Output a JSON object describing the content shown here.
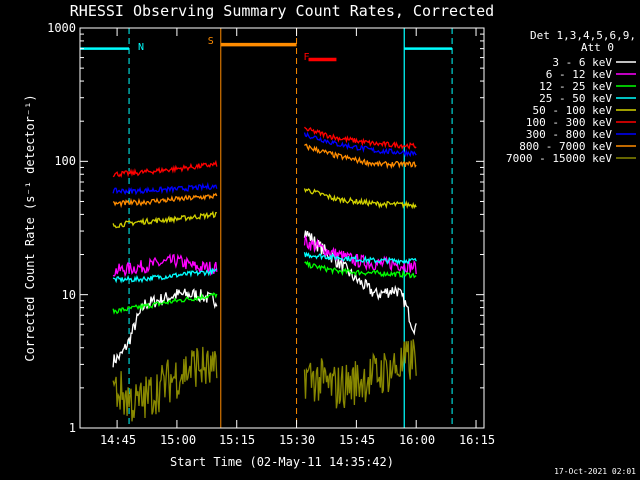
{
  "chart_data": {
    "type": "line",
    "title": "RHESSI Observing Summary Count Rates, Corrected",
    "xlabel": "Start Time (02-May-11 14:35:42)",
    "ylabel": "Corrected Count Rate (s⁻¹ detector⁻¹)",
    "y_scale": "log",
    "ylim": [
      1,
      1000
    ],
    "xlim": [
      "14:35:42",
      "16:17:00"
    ],
    "x_ticks": [
      "14:45",
      "15:00",
      "15:15",
      "15:30",
      "15:45",
      "16:00",
      "16:15"
    ],
    "y_ticks": [
      "1",
      "10",
      "100",
      "1000"
    ],
    "grid": false,
    "legend_position": "top-right",
    "legend_header": [
      "Det 1,3,4,5,6,9,",
      "Att 0"
    ],
    "timestamp": "17-Oct-2021 02:01",
    "flags": [
      {
        "label": "N",
        "color": "#00ffff",
        "line": "dashed",
        "time": "14:49"
      },
      {
        "label": "S",
        "color": "#ff8c00",
        "line": "solid",
        "time": "15:11"
      },
      {
        "label": "F",
        "color": "#ff0000",
        "line": "none",
        "time": "15:33"
      }
    ],
    "night_intervals": [
      {
        "start": "14:35:42",
        "end": "14:48",
        "level": 700
      },
      {
        "start": "15:57",
        "end": "16:09",
        "level": 700
      }
    ],
    "saa_interval": {
      "start": "15:11",
      "end": "15:30",
      "level": 750
    },
    "flare_marker": {
      "start": "15:33",
      "end": "15:40",
      "level": 580
    },
    "series": [
      {
        "name": "3 - 6 keV",
        "color": "#ffffff",
        "segments": [
          {
            "t": [
              "14:44",
              "14:46",
              "14:48",
              "14:50",
              "14:52",
              "14:55",
              "15:00",
              "15:05",
              "15:10"
            ],
            "y": [
              3.2,
              3.5,
              4.5,
              6.5,
              8.5,
              9,
              10,
              10,
              9
            ]
          },
          {
            "t": [
              "15:32",
              "15:35",
              "15:40",
              "15:45",
              "15:50",
              "15:55",
              "15:57",
              "15:59",
              "16:00"
            ],
            "y": [
              30,
              24,
              18,
              13,
              10,
              11,
              9,
              6,
              5.5
            ]
          }
        ]
      },
      {
        "name": "6 - 12 keV",
        "color": "#ff00ff",
        "segments": [
          {
            "t": [
              "14:44",
              "14:50",
              "14:55",
              "15:00",
              "15:05",
              "15:10"
            ],
            "y": [
              15,
              16,
              17,
              18,
              16,
              16
            ]
          },
          {
            "t": [
              "15:32",
              "15:35",
              "15:40",
              "15:45",
              "15:50",
              "15:55",
              "16:00"
            ],
            "y": [
              25,
              23,
              20,
              18,
              17,
              17,
              16
            ]
          }
        ]
      },
      {
        "name": "12 - 25 keV",
        "color": "#00ff00",
        "segments": [
          {
            "t": [
              "14:44",
              "14:50",
              "15:00",
              "15:10"
            ],
            "y": [
              7.5,
              8,
              9,
              10
            ]
          },
          {
            "t": [
              "15:32",
              "15:40",
              "15:50",
              "16:00"
            ],
            "y": [
              17,
              15,
              14.5,
              14
            ]
          }
        ]
      },
      {
        "name": "25 - 50 keV",
        "color": "#00ffff",
        "segments": [
          {
            "t": [
              "14:44",
              "14:50",
              "15:00",
              "15:10"
            ],
            "y": [
              13,
              13,
              14,
              15
            ]
          },
          {
            "t": [
              "15:32",
              "15:40",
              "15:50",
              "16:00"
            ],
            "y": [
              20,
              19,
              18,
              18
            ]
          }
        ]
      },
      {
        "name": "50 - 100 keV",
        "color": "#d2d200",
        "segments": [
          {
            "t": [
              "14:44",
              "14:50",
              "15:00",
              "15:10"
            ],
            "y": [
              33,
              35,
              37,
              40
            ]
          },
          {
            "t": [
              "15:32",
              "15:40",
              "15:50",
              "16:00"
            ],
            "y": [
              62,
              52,
              48,
              47
            ]
          }
        ]
      },
      {
        "name": "100 - 300 keV",
        "color": "#ff0000",
        "segments": [
          {
            "t": [
              "14:44",
              "14:50",
              "15:00",
              "15:10"
            ],
            "y": [
              80,
              82,
              88,
              95
            ]
          },
          {
            "t": [
              "15:32",
              "15:40",
              "15:50",
              "16:00"
            ],
            "y": [
              175,
              150,
              135,
              130
            ]
          }
        ]
      },
      {
        "name": "300 - 800 keV",
        "color": "#0000ff",
        "segments": [
          {
            "t": [
              "14:44",
              "14:50",
              "15:00",
              "15:10"
            ],
            "y": [
              60,
              60,
              62,
              65
            ]
          },
          {
            "t": [
              "15:32",
              "15:40",
              "15:50",
              "16:00"
            ],
            "y": [
              160,
              135,
              120,
              115
            ]
          }
        ]
      },
      {
        "name": "800 - 7000 keV",
        "color": "#ff8c00",
        "segments": [
          {
            "t": [
              "14:44",
              "14:50",
              "15:00",
              "15:10"
            ],
            "y": [
              48,
              49,
              52,
              55
            ]
          },
          {
            "t": [
              "15:32",
              "15:40",
              "15:50",
              "16:00"
            ],
            "y": [
              130,
              110,
              95,
              95
            ]
          }
        ]
      },
      {
        "name": "7000 - 15000 keV",
        "color": "#888800",
        "segments": [
          {
            "t": [
              "14:44",
              "14:50",
              "15:00",
              "15:05",
              "15:10"
            ],
            "y": [
              2,
              1.5,
              2.5,
              3,
              2.5
            ]
          },
          {
            "t": [
              "15:32",
              "15:40",
              "15:50",
              "15:57",
              "16:00"
            ],
            "y": [
              2.5,
              2,
              2.5,
              3,
              3.5
            ]
          }
        ]
      }
    ]
  }
}
